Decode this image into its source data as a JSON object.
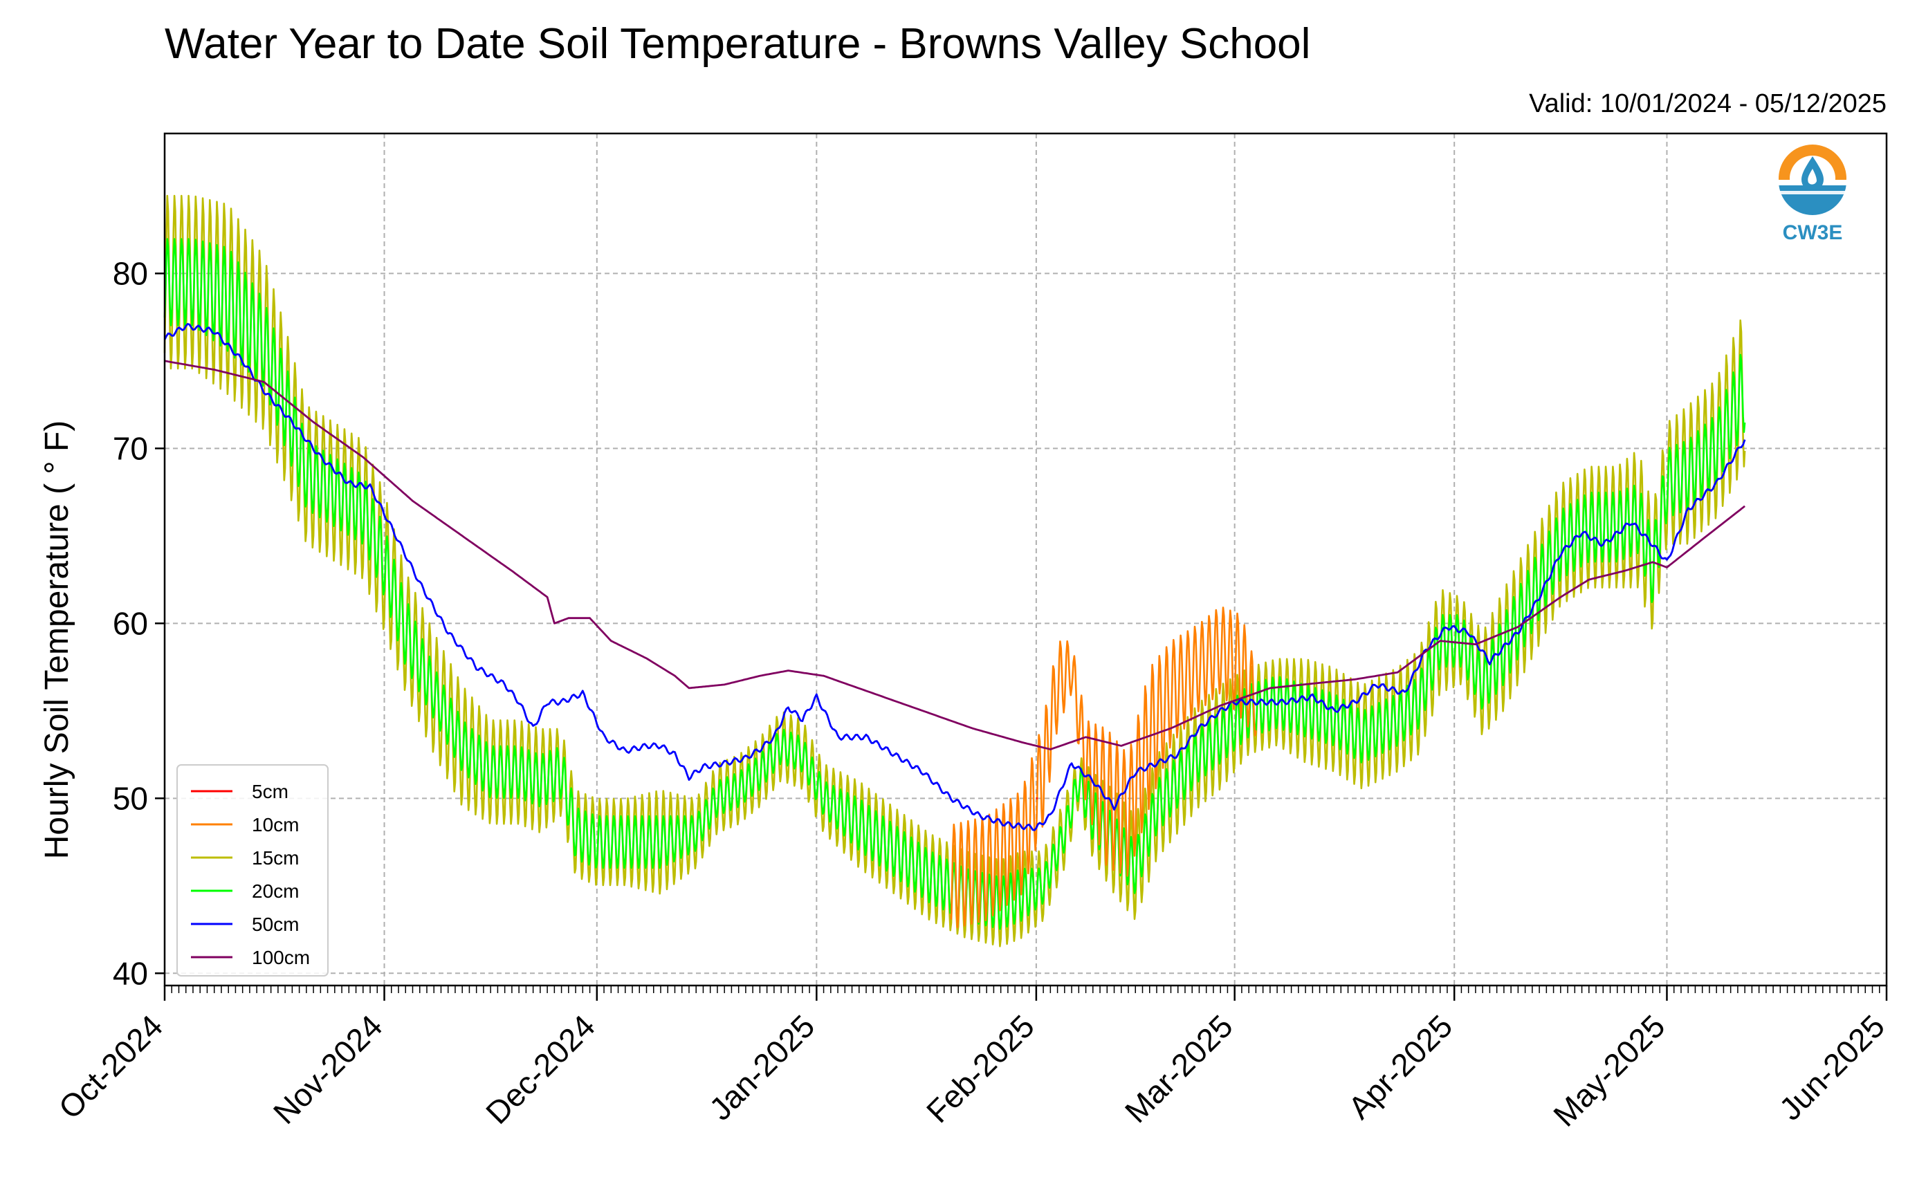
{
  "title": "Water Year to Date Soil Temperature - Browns Valley School",
  "valid_range": "Valid: 10/01/2024 - 05/12/2025",
  "logo": {
    "icon": "cw3e-water-drop-logo",
    "text": "CW3E"
  },
  "chart_data": {
    "type": "line",
    "title": "Water Year to Date Soil Temperature - Browns Valley School",
    "ylabel": "Hourly Soil Temperature ( ° F)",
    "xlabel": "",
    "ylim": [
      39.3,
      88.0
    ],
    "xlim": [
      "2024-10-01",
      "2025-06-01"
    ],
    "yticks": [
      40,
      50,
      60,
      70,
      80
    ],
    "xticks": [
      "2024-10-01",
      "2024-11-01",
      "2024-12-01",
      "2025-01-01",
      "2025-02-01",
      "2025-03-01",
      "2025-04-01",
      "2025-05-01",
      "2025-06-01"
    ],
    "xtick_labels": [
      "Oct-2024",
      "Nov-2024",
      "Dec-2024",
      "Jan-2025",
      "Feb-2025",
      "Mar-2025",
      "Apr-2025",
      "May-2025",
      "Jun-2025"
    ],
    "grid": true,
    "legend_position": "lower-left",
    "series": [
      {
        "name": "5cm",
        "color": "#ff0000",
        "x": [
          "2025-02-01"
        ],
        "y": [
          50.0
        ],
        "diurnal_range": [
          0.0
        ]
      },
      {
        "name": "10cm",
        "color": "#ff8000",
        "x": [
          "2025-01-20",
          "2025-01-25",
          "2025-01-30",
          "2025-02-02",
          "2025-02-04",
          "2025-02-06",
          "2025-02-08",
          "2025-02-11",
          "2025-02-14",
          "2025-02-17",
          "2025-02-20",
          "2025-02-24",
          "2025-02-27",
          "2025-03-02",
          "2025-03-04"
        ],
        "y": [
          45.5,
          46.0,
          47.5,
          51.5,
          56.5,
          57.5,
          52.0,
          50.0,
          49.0,
          53.5,
          56.0,
          57.5,
          58.5,
          57.5,
          55.5
        ],
        "diurnal_range": [
          6.0,
          6.0,
          6.0,
          6.0,
          5.0,
          3.0,
          5.0,
          8.0,
          7.0,
          8.0,
          6.0,
          5.0,
          5.0,
          6.0,
          4.0
        ]
      },
      {
        "name": "15cm",
        "color": "#bdbd00",
        "x": [
          "2024-10-01",
          "2024-10-05",
          "2024-10-10",
          "2024-10-15",
          "2024-10-18",
          "2024-10-21",
          "2024-10-25",
          "2024-10-29",
          "2024-11-01",
          "2024-11-04",
          "2024-11-08",
          "2024-11-12",
          "2024-11-16",
          "2024-11-20",
          "2024-11-23",
          "2024-11-26",
          "2024-11-28",
          "2024-12-01",
          "2024-12-05",
          "2024-12-10",
          "2024-12-15",
          "2024-12-18",
          "2024-12-21",
          "2024-12-24",
          "2024-12-27",
          "2024-12-30",
          "2025-01-02",
          "2025-01-07",
          "2025-01-12",
          "2025-01-17",
          "2025-01-22",
          "2025-01-27",
          "2025-01-30",
          "2025-02-02",
          "2025-02-05",
          "2025-02-07",
          "2025-02-09",
          "2025-02-12",
          "2025-02-15",
          "2025-02-18",
          "2025-02-21",
          "2025-02-24",
          "2025-02-27",
          "2025-03-03",
          "2025-03-07",
          "2025-03-11",
          "2025-03-15",
          "2025-03-19",
          "2025-03-24",
          "2025-03-27",
          "2025-03-30",
          "2025-04-02",
          "2025-04-05",
          "2025-04-08",
          "2025-04-12",
          "2025-04-16",
          "2025-04-20",
          "2025-04-24",
          "2025-04-27",
          "2025-04-29",
          "2025-05-01",
          "2025-05-04",
          "2025-05-08",
          "2025-05-12"
        ],
        "y": [
          79.5,
          79.5,
          78.5,
          76.0,
          72.5,
          68.5,
          67.5,
          66.5,
          63.5,
          59.5,
          56.0,
          53.0,
          51.5,
          51.5,
          51.0,
          51.5,
          48.0,
          47.5,
          47.5,
          47.5,
          48.0,
          50.0,
          50.5,
          51.5,
          53.0,
          52.5,
          50.0,
          48.5,
          47.0,
          45.5,
          44.5,
          44.0,
          44.5,
          45.0,
          48.0,
          51.0,
          49.0,
          47.5,
          46.0,
          49.5,
          51.0,
          52.5,
          53.5,
          55.0,
          55.5,
          55.0,
          54.5,
          53.5,
          54.5,
          55.5,
          59.0,
          59.0,
          56.5,
          58.5,
          61.5,
          64.5,
          65.5,
          65.5,
          66.0,
          63.0,
          68.0,
          68.5,
          70.0,
          73.5
        ],
        "diurnal_range": [
          10.0,
          10.0,
          11.0,
          10.0,
          9.0,
          8.0,
          8.0,
          8.0,
          8.0,
          7.0,
          7.0,
          7.0,
          6.0,
          6.0,
          6.0,
          5.0,
          5.0,
          5.0,
          5.0,
          6.0,
          4.0,
          4.0,
          4.0,
          4.0,
          4.0,
          4.0,
          4.0,
          5.0,
          5.0,
          5.0,
          5.0,
          5.0,
          5.0,
          4.0,
          4.0,
          3.0,
          5.0,
          6.0,
          6.0,
          6.0,
          6.0,
          6.0,
          6.0,
          5.0,
          5.0,
          6.0,
          6.0,
          6.0,
          6.0,
          6.0,
          6.0,
          5.0,
          6.0,
          7.0,
          7.0,
          7.0,
          7.0,
          7.0,
          8.0,
          7.0,
          7.0,
          8.0,
          8.0,
          9.0
        ]
      },
      {
        "name": "20cm",
        "color": "#00ff00",
        "x": [
          "2024-10-01",
          "2024-10-05",
          "2024-10-10",
          "2024-10-15",
          "2024-10-18",
          "2024-10-21",
          "2024-10-25",
          "2024-10-29",
          "2024-11-01",
          "2024-11-04",
          "2024-11-08",
          "2024-11-12",
          "2024-11-16",
          "2024-11-20",
          "2024-11-23",
          "2024-11-26",
          "2024-11-28",
          "2024-12-01",
          "2024-12-05",
          "2024-12-10",
          "2024-12-15",
          "2024-12-18",
          "2024-12-21",
          "2024-12-24",
          "2024-12-27",
          "2024-12-30",
          "2025-01-02",
          "2025-01-07",
          "2025-01-12",
          "2025-01-17",
          "2025-01-22",
          "2025-01-27",
          "2025-01-30",
          "2025-02-02",
          "2025-02-05",
          "2025-02-07",
          "2025-02-09",
          "2025-02-12",
          "2025-02-15",
          "2025-02-18",
          "2025-02-21",
          "2025-02-24",
          "2025-02-27",
          "2025-03-03",
          "2025-03-07",
          "2025-03-11",
          "2025-03-15",
          "2025-03-19",
          "2025-03-24",
          "2025-03-27",
          "2025-03-30",
          "2025-04-02",
          "2025-04-05",
          "2025-04-08",
          "2025-04-12",
          "2025-04-16",
          "2025-04-20",
          "2025-04-24",
          "2025-04-27",
          "2025-04-29",
          "2025-05-01",
          "2025-05-04",
          "2025-05-08",
          "2025-05-12"
        ],
        "y": [
          79.5,
          79.5,
          78.5,
          76.0,
          72.5,
          68.5,
          67.5,
          66.5,
          63.5,
          59.5,
          56.0,
          53.0,
          51.5,
          51.5,
          51.0,
          51.5,
          48.0,
          47.5,
          47.5,
          47.5,
          48.0,
          50.0,
          50.5,
          51.5,
          53.0,
          52.5,
          50.0,
          48.5,
          47.0,
          45.5,
          44.5,
          44.0,
          44.5,
          45.0,
          48.0,
          51.0,
          49.0,
          47.5,
          46.0,
          49.5,
          51.0,
          52.5,
          53.5,
          55.0,
          55.5,
          55.0,
          54.5,
          53.5,
          54.5,
          55.5,
          59.0,
          59.0,
          56.5,
          58.5,
          61.5,
          64.5,
          65.5,
          65.5,
          66.0,
          63.0,
          68.0,
          68.5,
          70.0,
          73.5
        ],
        "diurnal_range": [
          5.0,
          5.0,
          6.0,
          5.0,
          5.0,
          4.0,
          4.0,
          4.0,
          4.0,
          4.0,
          3.0,
          3.0,
          3.0,
          3.0,
          3.0,
          3.0,
          3.0,
          3.0,
          3.0,
          3.0,
          2.0,
          2.0,
          2.0,
          2.0,
          2.0,
          2.0,
          2.0,
          3.0,
          3.0,
          3.0,
          3.0,
          3.0,
          3.0,
          2.0,
          2.0,
          2.0,
          3.0,
          3.0,
          3.0,
          3.0,
          3.0,
          3.0,
          3.0,
          3.0,
          3.0,
          3.0,
          3.0,
          3.0,
          3.0,
          3.0,
          3.0,
          3.0,
          3.0,
          4.0,
          4.0,
          4.0,
          4.0,
          4.0,
          4.0,
          4.0,
          4.0,
          4.0,
          4.0,
          5.0
        ]
      },
      {
        "name": "50cm",
        "color": "#0000ff",
        "x": [
          "2024-10-01",
          "2024-10-04",
          "2024-10-08",
          "2024-10-12",
          "2024-10-15",
          "2024-10-19",
          "2024-10-23",
          "2024-10-27",
          "2024-10-30",
          "2024-11-02",
          "2024-11-06",
          "2024-11-10",
          "2024-11-14",
          "2024-11-18",
          "2024-11-20",
          "2024-11-22",
          "2024-11-24",
          "2024-11-26",
          "2024-11-29",
          "2024-12-02",
          "2024-12-05",
          "2024-12-08",
          "2024-12-10",
          "2024-12-12",
          "2024-12-14",
          "2024-12-16",
          "2024-12-19",
          "2024-12-22",
          "2024-12-24",
          "2024-12-26",
          "2024-12-28",
          "2024-12-30",
          "2025-01-01",
          "2025-01-04",
          "2025-01-08",
          "2025-01-12",
          "2025-01-16",
          "2025-01-20",
          "2025-01-24",
          "2025-01-28",
          "2025-02-01",
          "2025-02-03",
          "2025-02-06",
          "2025-02-09",
          "2025-02-12",
          "2025-02-15",
          "2025-02-18",
          "2025-02-21",
          "2025-02-24",
          "2025-02-27",
          "2025-03-01",
          "2025-03-04",
          "2025-03-08",
          "2025-03-12",
          "2025-03-15",
          "2025-03-18",
          "2025-03-21",
          "2025-03-25",
          "2025-03-28",
          "2025-03-31",
          "2025-04-03",
          "2025-04-06",
          "2025-04-10",
          "2025-04-13",
          "2025-04-16",
          "2025-04-19",
          "2025-04-22",
          "2025-04-26",
          "2025-04-29",
          "2025-05-01",
          "2025-05-04",
          "2025-05-08",
          "2025-05-12"
        ],
        "y": [
          76.3,
          77.0,
          76.7,
          75.0,
          73.3,
          71.5,
          69.5,
          68.0,
          67.8,
          65.5,
          62.3,
          59.5,
          57.5,
          56.5,
          55.5,
          54.0,
          55.5,
          55.5,
          56.0,
          53.5,
          52.7,
          53.0,
          53.0,
          52.5,
          51.2,
          51.8,
          52.0,
          52.3,
          52.8,
          53.5,
          55.2,
          54.5,
          55.8,
          53.5,
          53.5,
          52.5,
          51.5,
          50.0,
          49.0,
          48.5,
          48.3,
          49.0,
          52.0,
          51.0,
          49.5,
          51.5,
          52.0,
          52.5,
          54.0,
          55.0,
          55.5,
          55.5,
          55.5,
          55.8,
          55.0,
          55.5,
          56.5,
          56.0,
          58.5,
          59.8,
          59.5,
          57.8,
          59.5,
          61.5,
          64.0,
          65.2,
          64.5,
          65.8,
          64.5,
          63.5,
          66.5,
          68.0,
          70.5
        ],
        "diurnal_range": [
          0.5
        ]
      },
      {
        "name": "100cm",
        "color": "#800060",
        "x": [
          "2024-10-01",
          "2024-10-08",
          "2024-10-15",
          "2024-10-22",
          "2024-10-29",
          "2024-11-05",
          "2024-11-12",
          "2024-11-19",
          "2024-11-24",
          "2024-11-25",
          "2024-11-27",
          "2024-11-30",
          "2024-12-03",
          "2024-12-08",
          "2024-12-12",
          "2024-12-14",
          "2024-12-19",
          "2024-12-24",
          "2024-12-28",
          "2025-01-02",
          "2025-01-09",
          "2025-01-16",
          "2025-01-23",
          "2025-01-30",
          "2025-02-03",
          "2025-02-08",
          "2025-02-13",
          "2025-02-20",
          "2025-02-27",
          "2025-03-06",
          "2025-03-13",
          "2025-03-18",
          "2025-03-24",
          "2025-03-30",
          "2025-04-04",
          "2025-04-10",
          "2025-04-16",
          "2025-04-20",
          "2025-04-25",
          "2025-04-29",
          "2025-05-01",
          "2025-05-06",
          "2025-05-12"
        ],
        "y": [
          75.0,
          74.5,
          73.8,
          71.5,
          69.5,
          67.0,
          65.0,
          63.0,
          61.5,
          60.0,
          60.3,
          60.3,
          59.0,
          58.0,
          57.0,
          56.3,
          56.5,
          57.0,
          57.3,
          57.0,
          56.0,
          55.0,
          54.0,
          53.2,
          52.8,
          53.5,
          53.0,
          54.0,
          55.3,
          56.3,
          56.6,
          56.8,
          57.2,
          59.0,
          58.8,
          59.8,
          61.5,
          62.5,
          63.0,
          63.5,
          63.2,
          64.8,
          66.7
        ],
        "diurnal_range": [
          0.0
        ]
      }
    ]
  }
}
